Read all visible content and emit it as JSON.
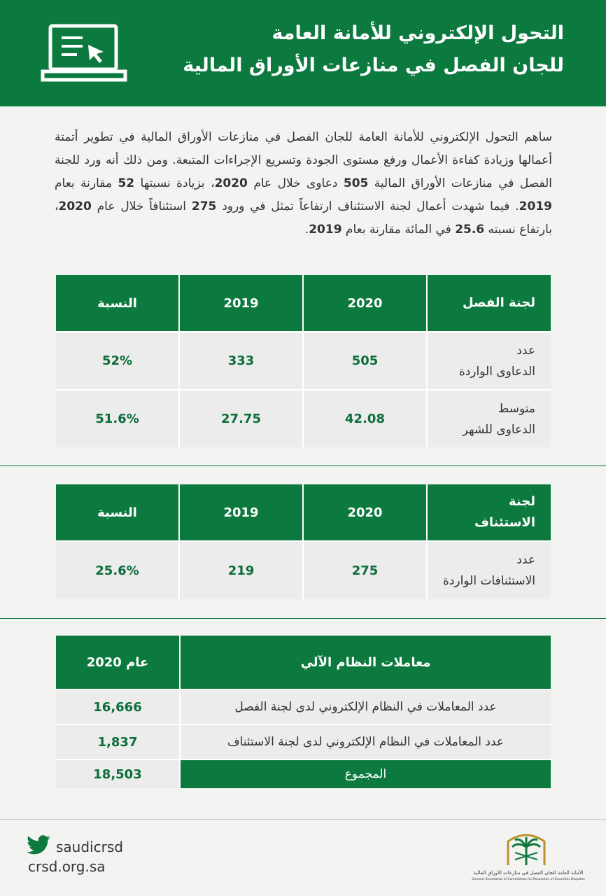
{
  "header": {
    "title_lines": [
      "التحول الإلكتروني للأمانة العامة",
      "للجان الفصل في منازعات الأوراق المالية"
    ]
  },
  "intro": "ساهم التحول الإلكتروني للأمانة العامة للجان الفصل في منازعات الأوراق المالية في تطوير أتمتة أعمالها وزيادة كفاءة الأعمال ورفع مستوى الجودة وتسريع الإجراءات المتبعة. ومن ذلك أنه ورد للجنة الفصل في منازعات الأوراق المالية 505 دعاوى خلال عام 2020، بزيادة نسبتها 52 مقارنة بعام 2019. فيما شهدت أعمال لجنة الاستئناف ارتفاعاً تمثل في ورود 275 استئنافاً خلال عام 2020، بارتفاع نسبته 25.6 في المائة مقارنة بعام 2019.",
  "table1": {
    "header": [
      "لجنة الفصل",
      "2020",
      "2019",
      "النسبة"
    ],
    "rows": [
      [
        "عدد\nالدعاوى الواردة",
        "505",
        "333",
        "52%"
      ],
      [
        "متوسط\nالدعاوى للشهر",
        "42.08",
        "27.75",
        "51.6%"
      ]
    ]
  },
  "table2": {
    "header": [
      "لجنة\nالاستئناف",
      "2020",
      "2019",
      "النسبة"
    ],
    "rows": [
      [
        "عدد\nالاستئنافات الواردة",
        "275",
        "219",
        "25.6%"
      ]
    ]
  },
  "table3": {
    "header": [
      "معاملات النظام الآلي",
      "عام 2020"
    ],
    "rows": [
      [
        "عدد المعاملات في النظام الإلكتروني لدى لجنة الفصل",
        "16,666"
      ],
      [
        "عدد المعاملات في النظام الإلكتروني لدى لجنة الاستئناف",
        "1,837"
      ]
    ],
    "total": [
      "المجموع",
      "18,503"
    ]
  },
  "footer": {
    "twitter": "saudicrsd",
    "website": "crsd.org.sa",
    "logo_ar": "الأمانة العامة للجان الفصل في منازعات الأوراق المالية",
    "logo_en": "General Secretariat of Committees for Resolution of Securities Disputes"
  }
}
